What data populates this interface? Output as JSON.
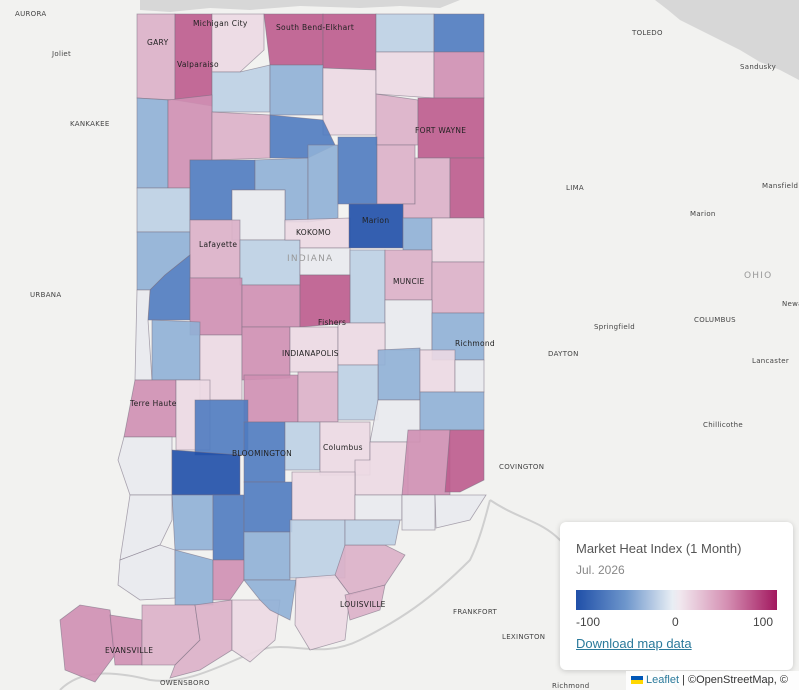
{
  "map": {
    "region": "Indiana",
    "colors": {
      "background": "#f2f2f0",
      "water": "#d7d7d7",
      "county_border": "#7a6f82",
      "scale_low": "#1f4fa8",
      "scale_mid": "#e8eef4",
      "scale_high": "#a2185f"
    },
    "cities": [
      {
        "name": "AURORA",
        "cls": "small"
      },
      {
        "name": "Joliet",
        "cls": "small"
      },
      {
        "name": "KANKAKEE",
        "cls": "small"
      },
      {
        "name": "URBANA",
        "cls": "small"
      },
      {
        "name": "TOLEDO",
        "cls": "small"
      },
      {
        "name": "Sandusky",
        "cls": "small"
      },
      {
        "name": "LIMA",
        "cls": "small"
      },
      {
        "name": "Mansfield",
        "cls": "small"
      },
      {
        "name": "Marion",
        "cls": "small"
      },
      {
        "name": "OHIO",
        "cls": "state"
      },
      {
        "name": "Newark",
        "cls": "small"
      },
      {
        "name": "Springfield",
        "cls": "small"
      },
      {
        "name": "COLUMBUS",
        "cls": "small"
      },
      {
        "name": "DAYTON",
        "cls": "small"
      },
      {
        "name": "Lancaster",
        "cls": "small"
      },
      {
        "name": "Chillicothe",
        "cls": "small"
      },
      {
        "name": "COVINGTON",
        "cls": "small"
      },
      {
        "name": "FRANKFORT",
        "cls": "small"
      },
      {
        "name": "LEXINGTON",
        "cls": "small"
      },
      {
        "name": "Richmond",
        "cls": "small"
      },
      {
        "name": "OWENSBORO",
        "cls": "small"
      },
      {
        "name": "GARY",
        "cls": "in-map"
      },
      {
        "name": "Michigan City",
        "cls": "in-map"
      },
      {
        "name": "South Bend-Elkhart",
        "cls": "in-map"
      },
      {
        "name": "Valparaiso",
        "cls": "in-map"
      },
      {
        "name": "FORT WAYNE",
        "cls": "in-map"
      },
      {
        "name": "Lafayette",
        "cls": "in-map"
      },
      {
        "name": "KOKOMO",
        "cls": "in-map"
      },
      {
        "name": "Marion",
        "cls": "in-map"
      },
      {
        "name": "INDIANA",
        "cls": "state"
      },
      {
        "name": "MUNCIE",
        "cls": "in-map"
      },
      {
        "name": "Fishers",
        "cls": "in-map"
      },
      {
        "name": "INDIANAPOLIS",
        "cls": "in-map"
      },
      {
        "name": "Richmond",
        "cls": "in-map"
      },
      {
        "name": "Terre Haute",
        "cls": "in-map"
      },
      {
        "name": "BLOOMINGTON",
        "cls": "in-map"
      },
      {
        "name": "Columbus",
        "cls": "in-map"
      },
      {
        "name": "LOUISVILLE",
        "cls": "in-map"
      },
      {
        "name": "EVANSVILLE",
        "cls": "in-map"
      }
    ]
  },
  "legend": {
    "title": "Market Heat Index (1 Month)",
    "date": "Jul. 2026",
    "min_label": "-100",
    "mid_label": "0",
    "max_label": "100",
    "download_label": "Download map data"
  },
  "attribution": {
    "leaflet": "Leaflet",
    "separator": " | ",
    "osm": "©OpenStreetMap, ©"
  }
}
